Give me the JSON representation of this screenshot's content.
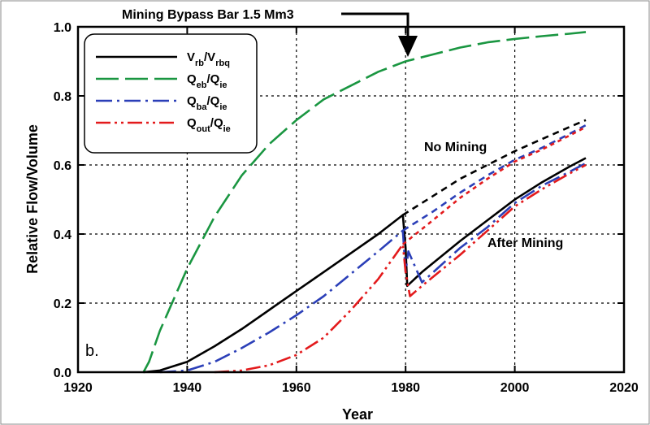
{
  "chart_data": {
    "type": "line",
    "xlabel": "Year",
    "ylabel": "Relative Flow/Volume",
    "xlim": [
      1920,
      2020
    ],
    "ylim": [
      0.0,
      1.0
    ],
    "x_ticks": [
      "1920",
      "1940",
      "1960",
      "1980",
      "2000",
      "2020"
    ],
    "y_ticks": [
      "0.0",
      "0.2",
      "0.4",
      "0.6",
      "0.8",
      "1.0"
    ],
    "grid": "dashed",
    "legend_position": "top-left",
    "panel_label": "b.",
    "annotations": {
      "arrow_label": "Mining Bypass Bar 1.5 Mm3",
      "no_mining": "No Mining",
      "after_mining": "After Mining"
    },
    "legend": [
      {
        "key": "vrb",
        "main1": "V",
        "sub1": "rb",
        "main2": "/V",
        "sub2": "rbq",
        "color": "#000000",
        "dash": "none"
      },
      {
        "key": "qeb",
        "main1": "Q",
        "sub1": "eb",
        "main2": "/Q",
        "sub2": "ie",
        "color": "#1a9641",
        "dash": "28,8"
      },
      {
        "key": "qba",
        "main1": "Q",
        "sub1": "ba",
        "main2": "/Q",
        "sub2": "ie",
        "color": "#2b3fb8",
        "dash": "20,6,3,6"
      },
      {
        "key": "qout",
        "main1": "Q",
        "sub1": "out",
        "main2": "/Q",
        "sub2": "ie",
        "color": "#e31a1c",
        "dash": "18,5,3,5,3,5"
      }
    ],
    "series": [
      {
        "key": "qeb",
        "color": "#1a9641",
        "dash": "28,8",
        "x": [
          1932,
          1933,
          1935,
          1940,
          1945,
          1950,
          1955,
          1960,
          1965,
          1970,
          1975,
          1980,
          1985,
          1990,
          1995,
          2000,
          2005,
          2010,
          2013
        ],
        "y": [
          0.0,
          0.03,
          0.12,
          0.3,
          0.45,
          0.57,
          0.66,
          0.73,
          0.79,
          0.83,
          0.87,
          0.9,
          0.92,
          0.94,
          0.955,
          0.965,
          0.973,
          0.98,
          0.985
        ]
      },
      {
        "key": "vrb",
        "color": "#000000",
        "dash": "none",
        "x": [
          1932,
          1935,
          1940,
          1945,
          1950,
          1955,
          1960,
          1965,
          1970,
          1975,
          1979.5,
          1980,
          1980.3,
          1983,
          1990,
          1995,
          2000,
          2005,
          2010,
          2013
        ],
        "y": [
          0.0,
          0.005,
          0.03,
          0.075,
          0.125,
          0.18,
          0.235,
          0.29,
          0.345,
          0.4,
          0.455,
          0.36,
          0.25,
          0.29,
          0.38,
          0.44,
          0.5,
          0.55,
          0.595,
          0.62
        ]
      },
      {
        "key": "qba",
        "color": "#2b3fb8",
        "dash": "20,6,3,6",
        "x": [
          1935,
          1940,
          1945,
          1950,
          1955,
          1960,
          1965,
          1970,
          1975,
          1979.5,
          1980,
          1980.5,
          1983,
          1990,
          1995,
          2000,
          2005,
          2010,
          2013
        ],
        "y": [
          0.0,
          0.005,
          0.03,
          0.07,
          0.115,
          0.165,
          0.22,
          0.285,
          0.35,
          0.41,
          0.29,
          0.35,
          0.26,
          0.36,
          0.42,
          0.49,
          0.54,
          0.58,
          0.605
        ]
      },
      {
        "key": "qout",
        "color": "#e31a1c",
        "dash": "18,5,3,5,3,5",
        "x": [
          1945,
          1950,
          1955,
          1960,
          1965,
          1970,
          1975,
          1979.5,
          1980,
          1980.8,
          1983,
          1990,
          1995,
          2000,
          2005,
          2010,
          2013
        ],
        "y": [
          0.0,
          0.005,
          0.02,
          0.05,
          0.1,
          0.18,
          0.27,
          0.37,
          0.29,
          0.22,
          0.25,
          0.34,
          0.41,
          0.48,
          0.53,
          0.575,
          0.6
        ]
      },
      {
        "key": "vrb_nomining",
        "color": "#000000",
        "dash": "8,6",
        "x": [
          1979.5,
          1985,
          1990,
          1995,
          2000,
          2005,
          2010,
          2013
        ],
        "y": [
          0.455,
          0.51,
          0.56,
          0.6,
          0.64,
          0.675,
          0.71,
          0.73
        ]
      },
      {
        "key": "qba_nomining",
        "color": "#2b3fb8",
        "dash": "8,6",
        "x": [
          1979.5,
          1985,
          1990,
          1995,
          2000,
          2005,
          2010,
          2013
        ],
        "y": [
          0.41,
          0.465,
          0.52,
          0.57,
          0.615,
          0.65,
          0.69,
          0.715
        ]
      },
      {
        "key": "qout_nomining",
        "color": "#e31a1c",
        "dash": "5,5",
        "x": [
          1979.5,
          1985,
          1990,
          1995,
          2000,
          2005,
          2010,
          2013
        ],
        "y": [
          0.37,
          0.44,
          0.505,
          0.56,
          0.61,
          0.645,
          0.685,
          0.71
        ]
      }
    ]
  }
}
